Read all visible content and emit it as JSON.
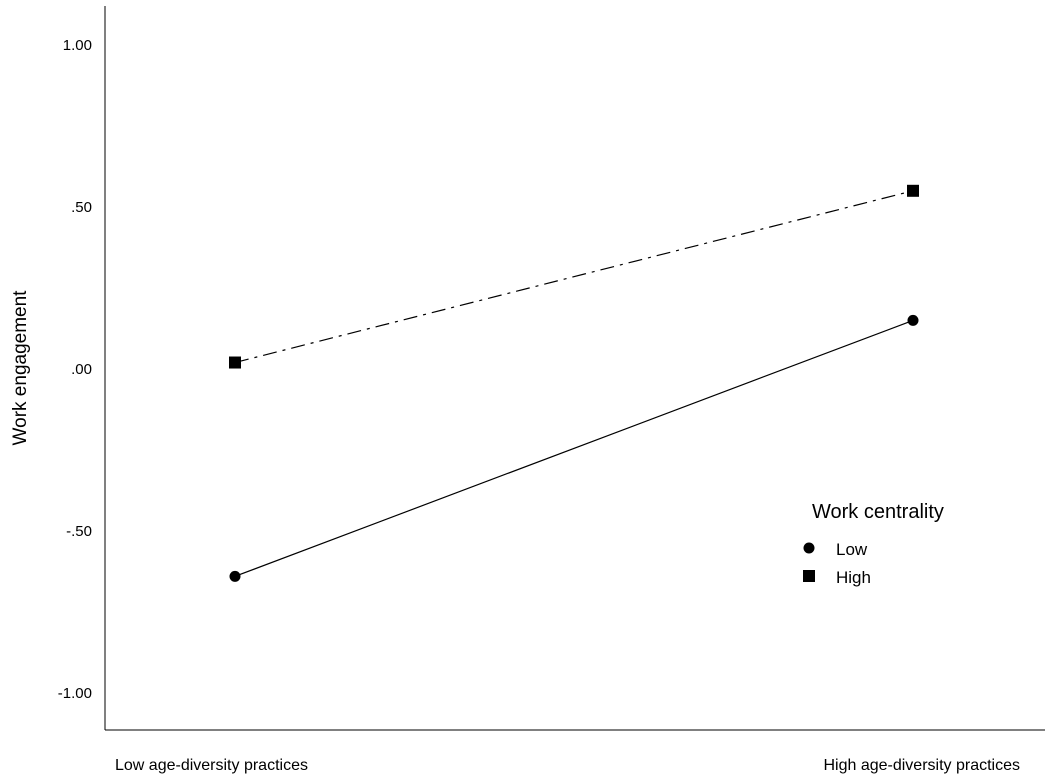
{
  "chart_data": {
    "type": "line",
    "title": "",
    "xlabel": "",
    "ylabel": "Work engagement",
    "categories": [
      "Low age-diversity practices",
      "High age-diversity practices"
    ],
    "ylim": [
      -1.1,
      1.1
    ],
    "yticks": [
      1.0,
      0.5,
      0.0,
      -0.5,
      -1.0
    ],
    "ytick_labels": [
      "1.00",
      ".50",
      ".00",
      "-.50",
      "-1.00"
    ],
    "grid": false,
    "legend": {
      "title": "Work centrality",
      "placement": "bottom-right"
    },
    "series": [
      {
        "name": "Low",
        "values": [
          -0.64,
          0.15
        ],
        "marker": "circle",
        "line_style": "solid",
        "color": "#000000"
      },
      {
        "name": "High",
        "values": [
          0.02,
          0.55
        ],
        "marker": "square",
        "line_style": "dash-dot",
        "color": "#000000"
      }
    ]
  }
}
